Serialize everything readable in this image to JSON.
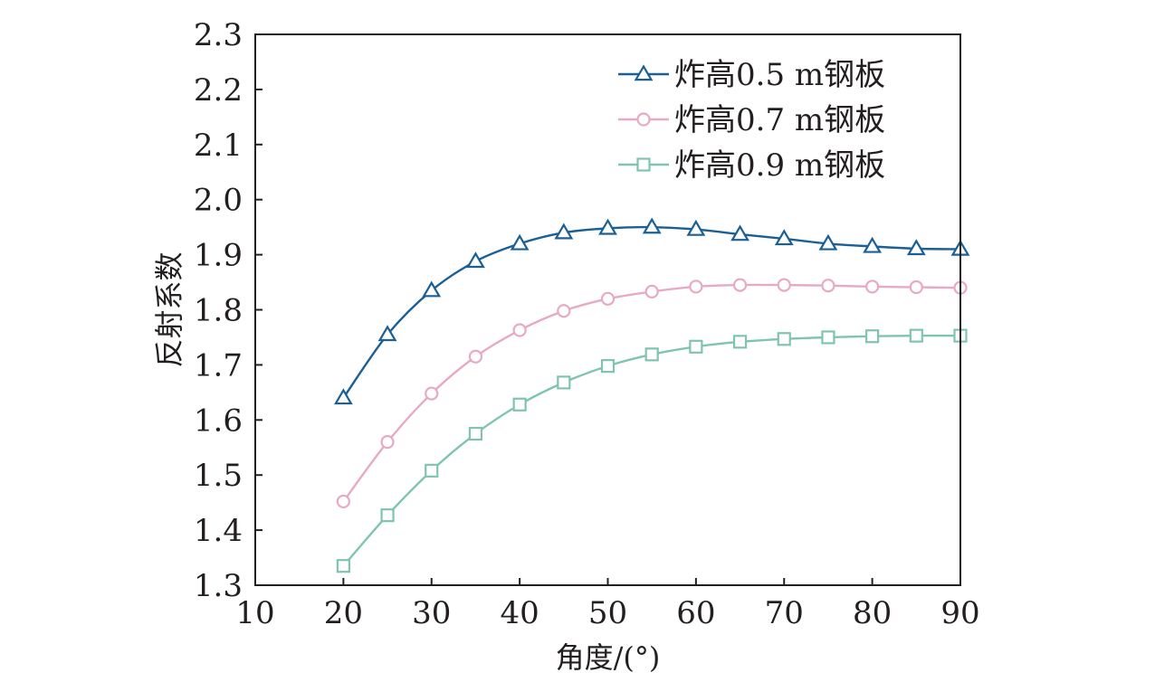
{
  "chart_data": {
    "type": "line",
    "title": "",
    "xlabel": "角度/(°)",
    "ylabel": "反射系数",
    "xlim": [
      10,
      90
    ],
    "ylim": [
      1.3,
      2.3
    ],
    "xticks": [
      "10",
      "20",
      "30",
      "40",
      "50",
      "60",
      "70",
      "80",
      "90"
    ],
    "yticks": [
      "1.3",
      "1.4",
      "1.5",
      "1.6",
      "1.7",
      "1.8",
      "1.9",
      "2.0",
      "2.1",
      "2.2",
      "2.3"
    ],
    "legend_position": "top-right",
    "series": [
      {
        "name": "炸高0.5 m钢板",
        "marker": "triangle",
        "color": "#1a5f95",
        "x": [
          20,
          25,
          30,
          35,
          40,
          45,
          50,
          55,
          60,
          65,
          70,
          75,
          80,
          85,
          90
        ],
        "y": [
          1.64,
          1.755,
          1.835,
          1.888,
          1.92,
          1.94,
          1.948,
          1.95,
          1.946,
          1.937,
          1.929,
          1.92,
          1.915,
          1.911,
          1.91
        ]
      },
      {
        "name": "炸高0.7 m钢板",
        "marker": "circle",
        "color": "#e8a9c6",
        "x": [
          20,
          25,
          30,
          35,
          40,
          45,
          50,
          55,
          60,
          65,
          70,
          75,
          80,
          85,
          90
        ],
        "y": [
          1.452,
          1.56,
          1.648,
          1.715,
          1.763,
          1.798,
          1.82,
          1.833,
          1.842,
          1.845,
          1.845,
          1.844,
          1.842,
          1.841,
          1.84
        ]
      },
      {
        "name": "炸高0.9 m钢板",
        "marker": "square",
        "color": "#7fc5ae",
        "x": [
          20,
          25,
          30,
          35,
          40,
          45,
          50,
          55,
          60,
          65,
          70,
          75,
          80,
          85,
          90
        ],
        "y": [
          1.335,
          1.427,
          1.508,
          1.575,
          1.628,
          1.668,
          1.698,
          1.719,
          1.733,
          1.742,
          1.747,
          1.75,
          1.752,
          1.753,
          1.753
        ]
      }
    ]
  }
}
